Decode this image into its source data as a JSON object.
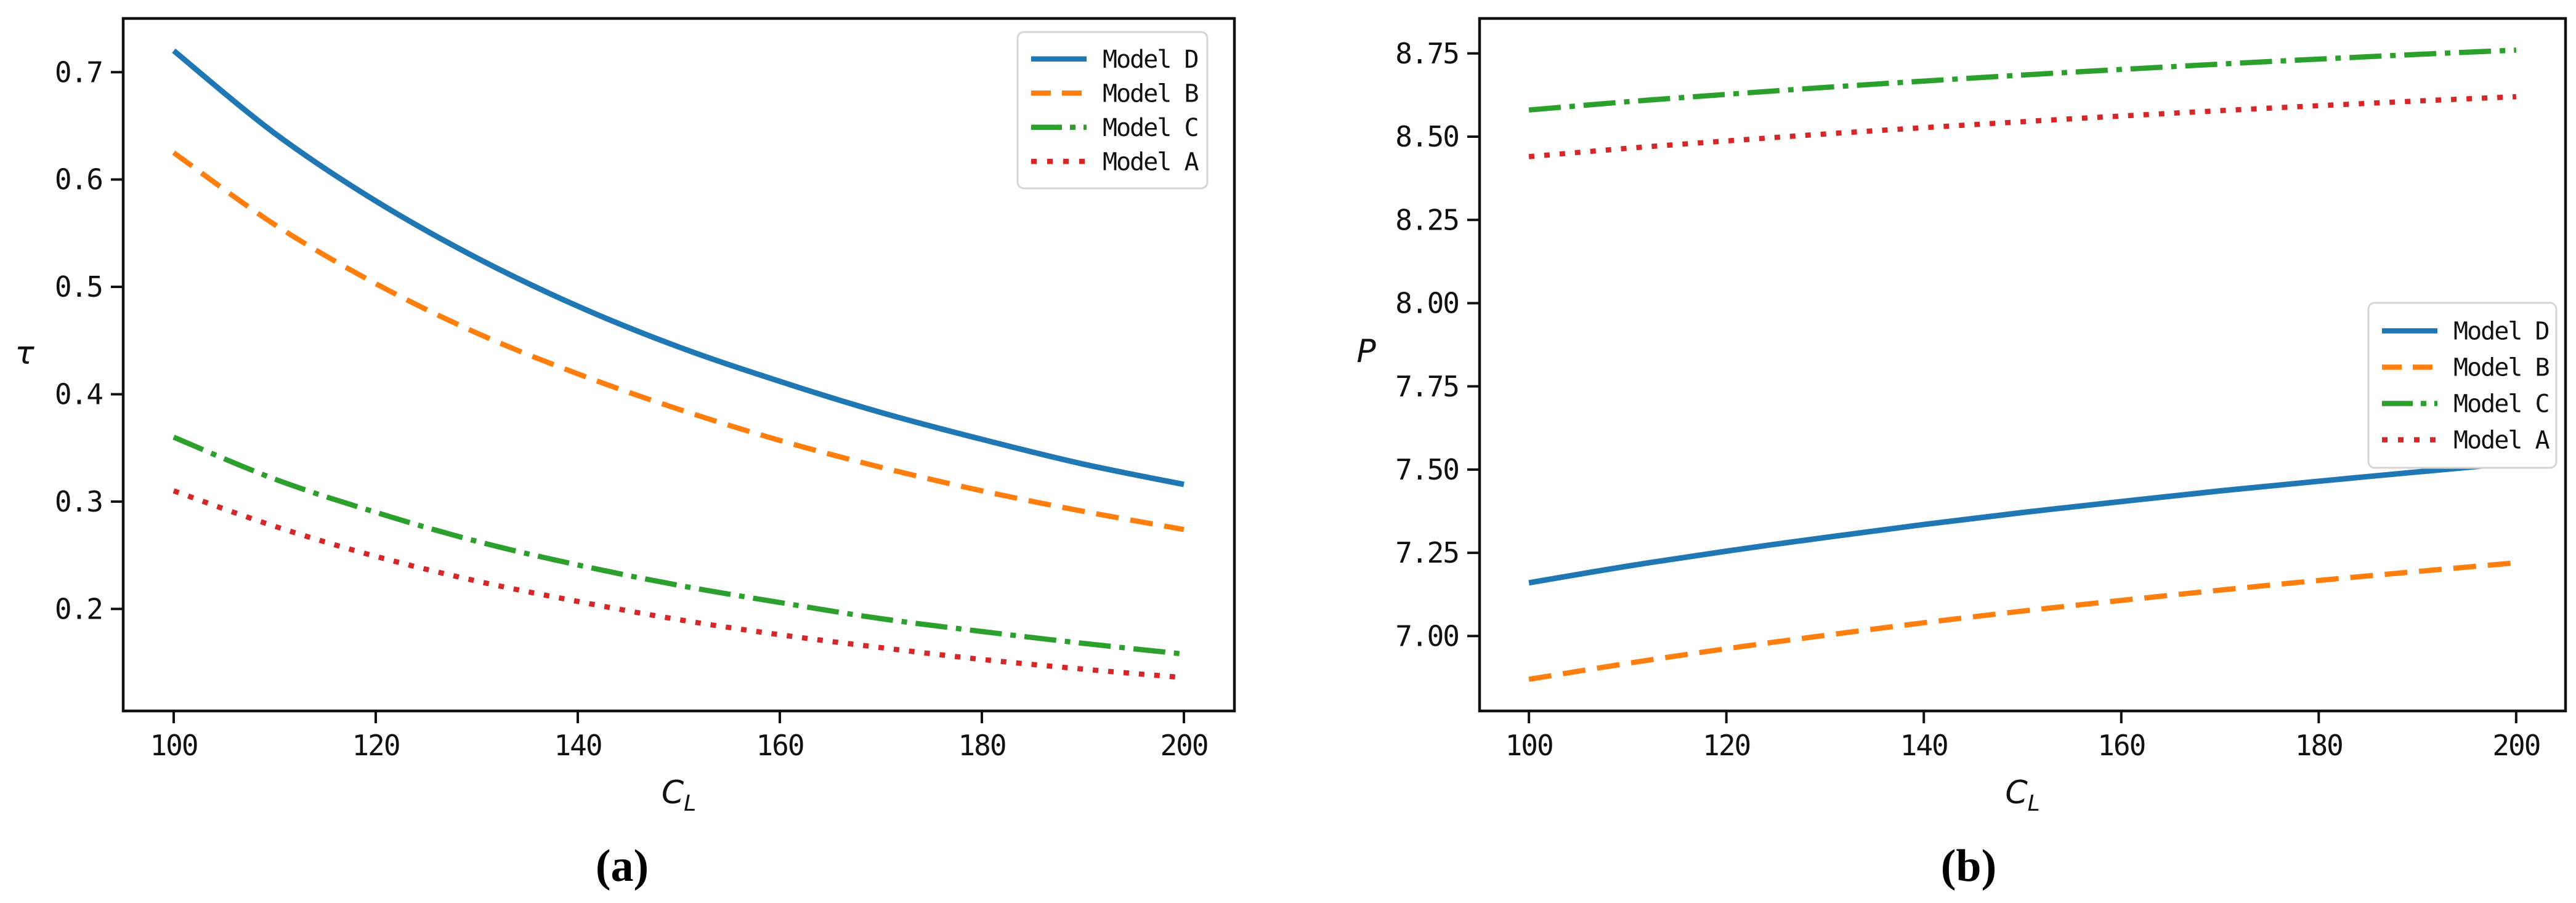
{
  "figure": {
    "background": "#ffffff",
    "spine_color": "#111111",
    "legend_border_color": "#d5d5d5"
  },
  "captions": {
    "a": "(a)",
    "b": "(b)"
  },
  "chart_data": [
    {
      "id": "a",
      "type": "line",
      "title": "",
      "xlabel": {
        "base": "C",
        "sub": "L"
      },
      "ylabel": "τ",
      "xlim": [
        95,
        205
      ],
      "ylim": [
        0.105,
        0.75
      ],
      "xticks": [
        "100",
        "120",
        "140",
        "160",
        "180",
        "200"
      ],
      "yticks": [
        "0.2",
        "0.3",
        "0.4",
        "0.5",
        "0.6",
        "0.7"
      ],
      "grid": false,
      "legend_position": "upper right",
      "x": [
        100,
        110,
        120,
        130,
        140,
        150,
        160,
        170,
        180,
        190,
        200
      ],
      "series": [
        {
          "name": "Model D",
          "color": "#1f77b4",
          "style": "solid",
          "values": [
            0.72,
            0.643,
            0.58,
            0.527,
            0.482,
            0.444,
            0.412,
            0.383,
            0.358,
            0.335,
            0.316
          ]
        },
        {
          "name": "Model B",
          "color": "#ff7f0e",
          "style": "dashed",
          "values": [
            0.625,
            0.558,
            0.503,
            0.457,
            0.419,
            0.386,
            0.357,
            0.332,
            0.31,
            0.291,
            0.274
          ]
        },
        {
          "name": "Model C",
          "color": "#2ca02c",
          "style": "dashdot",
          "values": [
            0.36,
            0.321,
            0.29,
            0.263,
            0.241,
            0.222,
            0.206,
            0.191,
            0.179,
            0.168,
            0.158
          ]
        },
        {
          "name": "Model A",
          "color": "#d62728",
          "style": "dotted",
          "values": [
            0.31,
            0.277,
            0.249,
            0.226,
            0.207,
            0.19,
            0.176,
            0.164,
            0.153,
            0.144,
            0.136
          ]
        }
      ]
    },
    {
      "id": "b",
      "type": "line",
      "title": "",
      "xlabel": {
        "base": "C",
        "sub": "L"
      },
      "ylabel": "P",
      "xlim": [
        95,
        205
      ],
      "ylim": [
        6.775,
        8.855
      ],
      "xticks": [
        "100",
        "120",
        "140",
        "160",
        "180",
        "200"
      ],
      "yticks": [
        "7.00",
        "7.25",
        "7.50",
        "7.75",
        "8.00",
        "8.25",
        "8.50",
        "8.75"
      ],
      "grid": false,
      "legend_position": "center right",
      "x": [
        100,
        110,
        120,
        130,
        140,
        150,
        160,
        170,
        180,
        190,
        200
      ],
      "series": [
        {
          "name": "Model D",
          "color": "#1f77b4",
          "style": "solid",
          "values": [
            7.16,
            7.21,
            7.255,
            7.296,
            7.335,
            7.371,
            7.404,
            7.436,
            7.465,
            7.493,
            7.52
          ]
        },
        {
          "name": "Model B",
          "color": "#ff7f0e",
          "style": "dashed",
          "values": [
            6.87,
            6.918,
            6.962,
            7.002,
            7.04,
            7.075,
            7.107,
            7.138,
            7.167,
            7.194,
            7.22
          ]
        },
        {
          "name": "Model C",
          "color": "#2ca02c",
          "style": "dashdot",
          "values": [
            8.58,
            8.605,
            8.627,
            8.648,
            8.667,
            8.685,
            8.702,
            8.718,
            8.733,
            8.747,
            8.76
          ]
        },
        {
          "name": "Model A",
          "color": "#d62728",
          "style": "dotted",
          "values": [
            8.44,
            8.465,
            8.487,
            8.508,
            8.527,
            8.545,
            8.562,
            8.578,
            8.593,
            8.607,
            8.62
          ]
        }
      ]
    }
  ]
}
